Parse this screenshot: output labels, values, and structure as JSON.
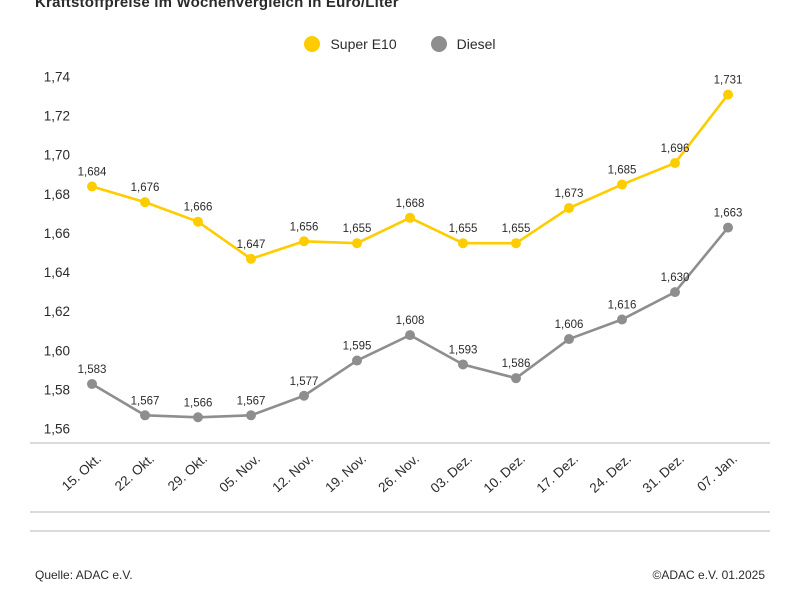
{
  "title": "Kraftstoffpreise im Wochenvergleich in Euro/Liter",
  "legend": [
    {
      "label": "Super E10",
      "color": "#FFCC00"
    },
    {
      "label": "Diesel",
      "color": "#8E8E8E"
    }
  ],
  "footer": {
    "source_left": "Quelle: ADAC e.V.",
    "source_right": "©ADAC e.V. 01.2025"
  },
  "chart_data": {
    "type": "line",
    "title": "Kraftstoffpreise im Wochenvergleich in Euro/Liter",
    "xlabel": "",
    "ylabel": "",
    "ylim": [
      1.56,
      1.74
    ],
    "ytick_step": 0.02,
    "grid": false,
    "legend_position": "top-center",
    "decimal_style": "comma",
    "categories": [
      "15. Okt.",
      "22. Okt.",
      "29. Okt.",
      "05. Nov.",
      "12. Nov.",
      "19. Nov.",
      "26. Nov.",
      "03. Dez.",
      "10. Dez.",
      "17. Dez.",
      "24. Dez.",
      "31. Dez.",
      "07. Jan."
    ],
    "series": [
      {
        "name": "Super E10",
        "color": "#FFCC00",
        "values": [
          1.684,
          1.676,
          1.666,
          1.647,
          1.656,
          1.655,
          1.668,
          1.655,
          1.655,
          1.673,
          1.685,
          1.696,
          1.731
        ],
        "labels": [
          "1,684",
          "1,676",
          "1,666",
          "1,647",
          "1,656",
          "1,655",
          "1,668",
          "1,655",
          "1,655",
          "1,673",
          "1,685",
          "1,696",
          "1,731"
        ]
      },
      {
        "name": "Diesel",
        "color": "#8E8E8E",
        "values": [
          1.583,
          1.567,
          1.566,
          1.567,
          1.577,
          1.595,
          1.608,
          1.593,
          1.586,
          1.606,
          1.616,
          1.63,
          1.663
        ],
        "labels": [
          "1,583",
          "1,567",
          "1,566",
          "1,567",
          "1,577",
          "1,595",
          "1,608",
          "1,593",
          "1,586",
          "1,606",
          "1,616",
          "1,630",
          "1,663"
        ]
      }
    ],
    "ytick_labels": [
      "1,56",
      "1,58",
      "1,60",
      "1,62",
      "1,64",
      "1,66",
      "1,68",
      "1,70",
      "1,72",
      "1,74"
    ]
  }
}
